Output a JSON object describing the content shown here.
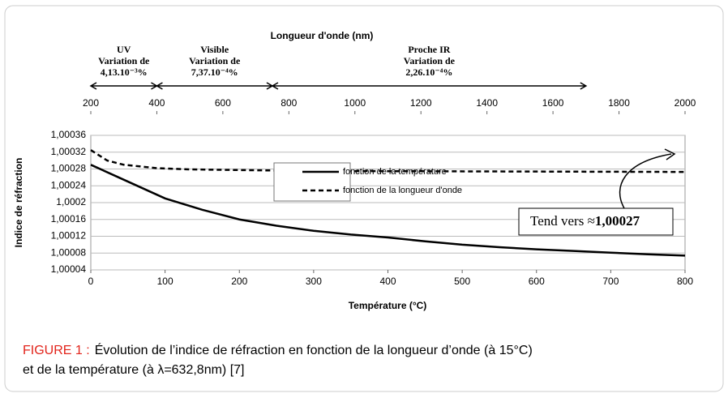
{
  "chart_data": {
    "type": "line",
    "x2_label": "Longueur d'onde (nm)",
    "xlabel": "Température (°C)",
    "ylabel": "Indice de réfraction",
    "xlim": [
      0,
      800
    ],
    "xticks": [
      0,
      100,
      200,
      300,
      400,
      500,
      600,
      700,
      800
    ],
    "x2lim": [
      200,
      2000
    ],
    "x2ticks": [
      200,
      400,
      600,
      800,
      1000,
      1200,
      1400,
      1600,
      1800,
      2000
    ],
    "ylim": [
      1.00004,
      1.00036
    ],
    "yticks": [
      {
        "value": 1.00004,
        "label": "1,00004"
      },
      {
        "value": 1.00008,
        "label": "1,00008"
      },
      {
        "value": 1.00012,
        "label": "1,00012"
      },
      {
        "value": 1.00016,
        "label": "1,00016"
      },
      {
        "value": 1.0002,
        "label": "1,0002"
      },
      {
        "value": 1.00024,
        "label": "1,00024"
      },
      {
        "value": 1.00028,
        "label": "1,00028"
      },
      {
        "value": 1.00032,
        "label": "1,00032"
      },
      {
        "value": 1.00036,
        "label": "1,00036"
      }
    ],
    "grid": true,
    "regions": [
      {
        "lines": [
          "UV",
          "Variation de",
          "4,13.10⁻³%"
        ],
        "range": [
          200,
          400
        ]
      },
      {
        "lines": [
          "Visible",
          "Variation de",
          "7,37.10⁻⁴%"
        ],
        "range": [
          400,
          750
        ]
      },
      {
        "lines": [
          "Proche IR",
          "Variation de",
          "2,26.10⁻⁴%"
        ],
        "range": [
          750,
          1700
        ]
      }
    ],
    "series": [
      {
        "name": "fonction de la température",
        "color": "#000000",
        "dash": false,
        "x": [
          0,
          50,
          100,
          150,
          200,
          250,
          300,
          350,
          400,
          450,
          500,
          550,
          600,
          650,
          700,
          750,
          800
        ],
        "values": [
          1.00029,
          1.00025,
          1.00021,
          1.000183,
          1.00016,
          1.000145,
          1.000133,
          1.000124,
          1.000117,
          1.000108,
          1.0001,
          1.000094,
          1.000089,
          1.000085,
          1.000081,
          1.000077,
          1.000074
        ]
      },
      {
        "name": "fonction de la longueur d'onde",
        "color": "#000000",
        "dash": true,
        "axis": "x2",
        "x": [
          200,
          250,
          300,
          400,
          500,
          600,
          800,
          1000,
          1500,
          2000
        ],
        "values": [
          1.000325,
          1.0003,
          1.00029,
          1.000282,
          1.000279,
          1.000278,
          1.000276,
          1.000275,
          1.000274,
          1.000273
        ]
      }
    ],
    "annotation": {
      "text": "Tend vers ≈",
      "bold": "1,00027"
    }
  },
  "caption": {
    "label": "FIGURE 1 :",
    "line1": "Évolution de l’indice de réfraction en fonction de la longueur d’onde (à 15°C)",
    "line2": "et de la température (à λ=632,8nm) [7]"
  }
}
